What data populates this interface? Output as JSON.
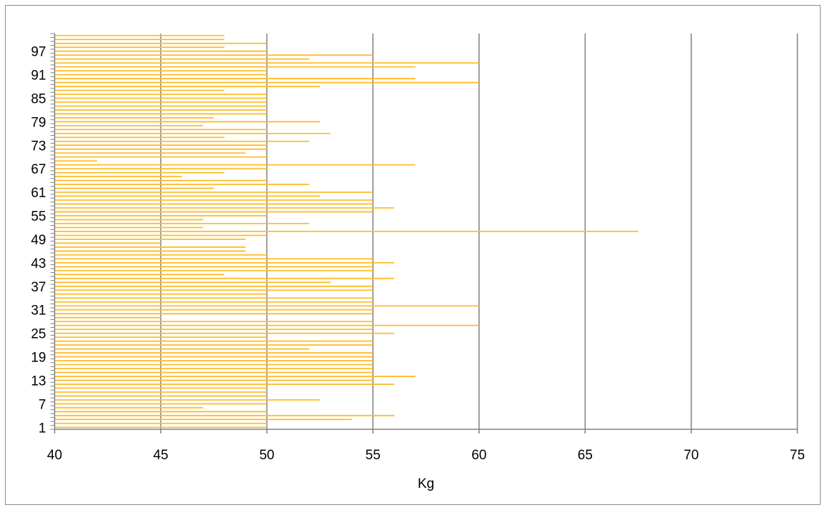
{
  "chart_data": {
    "type": "bar",
    "orientation": "horizontal",
    "title": "",
    "xlabel": "Kg",
    "ylabel": "",
    "xlim": [
      40,
      75
    ],
    "x_ticks": [
      40,
      45,
      50,
      55,
      60,
      65,
      70,
      75
    ],
    "y_tick_labels": [
      1,
      7,
      13,
      19,
      25,
      31,
      37,
      43,
      49,
      55,
      61,
      67,
      73,
      79,
      85,
      91,
      97
    ],
    "grid": "vertical-major",
    "legend": "none",
    "bar_color": "#FDBD2C",
    "gridline_color": "#808080",
    "categories": [
      1,
      2,
      3,
      4,
      5,
      6,
      7,
      8,
      9,
      10,
      11,
      12,
      13,
      14,
      15,
      16,
      17,
      18,
      19,
      20,
      21,
      22,
      23,
      24,
      25,
      26,
      27,
      28,
      29,
      30,
      31,
      32,
      33,
      34,
      35,
      36,
      37,
      38,
      39,
      40,
      41,
      42,
      43,
      44,
      45,
      46,
      47,
      48,
      49,
      50,
      51,
      52,
      53,
      54,
      55,
      56,
      57,
      58,
      59,
      60,
      61,
      62,
      63,
      64,
      65,
      66,
      67,
      68,
      69,
      70,
      71,
      72,
      73,
      74,
      75,
      76,
      77,
      78,
      79,
      80,
      81,
      82,
      83,
      84,
      85,
      86,
      87,
      88,
      89,
      90,
      91,
      92,
      93,
      94,
      95,
      96,
      97,
      98,
      99,
      100,
      101
    ],
    "values": [
      50,
      50,
      54,
      56,
      50,
      47,
      50,
      52.5,
      50,
      50,
      50,
      56,
      55,
      57,
      55,
      55,
      55,
      55,
      55,
      55,
      52,
      55,
      55,
      50,
      56,
      55,
      60,
      55,
      45,
      55,
      55,
      60,
      55,
      55,
      50,
      55,
      55,
      53,
      56,
      48,
      55,
      55,
      56,
      55,
      50,
      49,
      49,
      45,
      49,
      50,
      67.5,
      47,
      52,
      47,
      50,
      55,
      56,
      55,
      55,
      52.5,
      55,
      47.5,
      52,
      50,
      46,
      48,
      50,
      57,
      42,
      50,
      49,
      50,
      50,
      52,
      48,
      53,
      50,
      47,
      52.5,
      47.5,
      50,
      50,
      50,
      50,
      50,
      50,
      48,
      52.5,
      60,
      57,
      50,
      50,
      57,
      60,
      52,
      55,
      50,
      48,
      50,
      48,
      48
    ]
  }
}
